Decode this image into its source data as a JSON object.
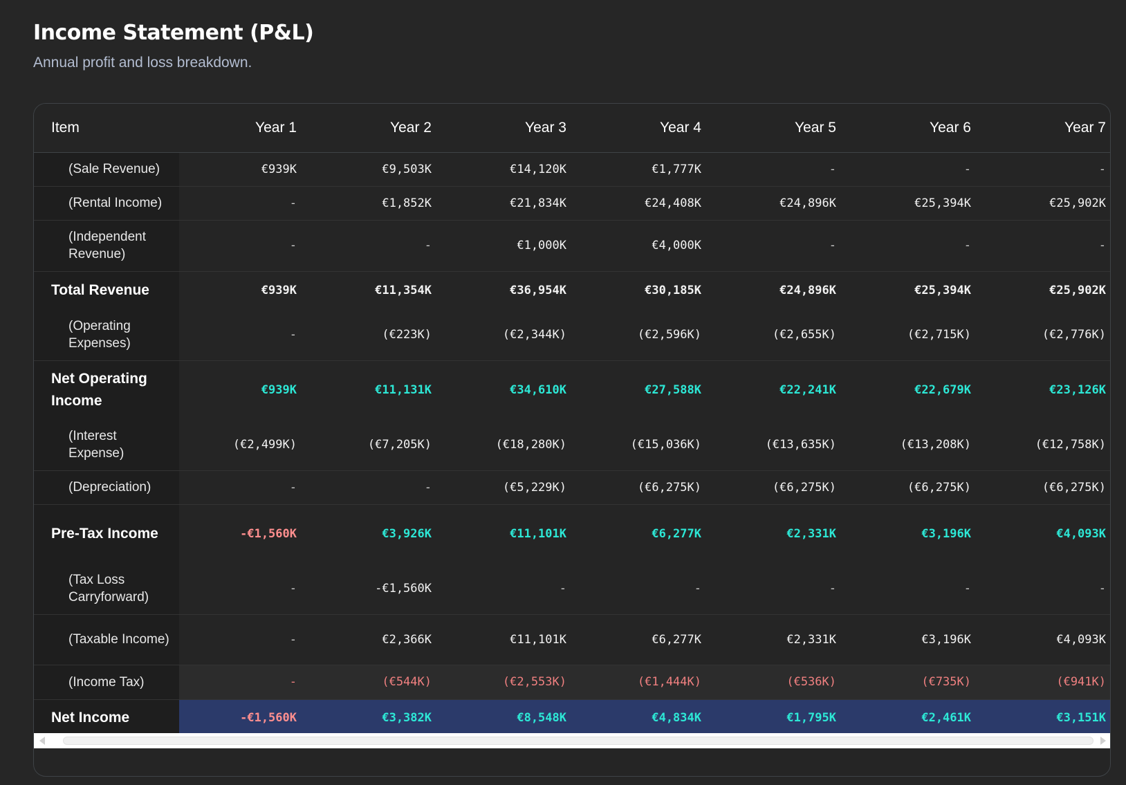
{
  "header": {
    "title": "Income Statement (P&L)",
    "subtitle": "Annual profit and loss breakdown."
  },
  "table": {
    "columns": [
      "Item",
      "Year 1",
      "Year 2",
      "Year 3",
      "Year 4",
      "Year 5",
      "Year 6",
      "Year 7"
    ],
    "rows": [
      {
        "label": "(Sale Revenue)",
        "kind": "sub",
        "values": [
          "€939K",
          "€9,503K",
          "€14,120K",
          "€1,777K",
          "-",
          "-",
          "-"
        ]
      },
      {
        "label": "(Rental Income)",
        "kind": "sub",
        "values": [
          "-",
          "€1,852K",
          "€21,834K",
          "€24,408K",
          "€24,896K",
          "€25,394K",
          "€25,902K"
        ]
      },
      {
        "label": "(Independent Revenue)",
        "kind": "sub",
        "values": [
          "-",
          "-",
          "€1,000K",
          "€4,000K",
          "-",
          "-",
          "-"
        ]
      },
      {
        "label": "Total Revenue",
        "kind": "total",
        "values": [
          "€939K",
          "€11,354K",
          "€36,954K",
          "€30,185K",
          "€24,896K",
          "€25,394K",
          "€25,902K"
        ]
      },
      {
        "label": "(Operating Expenses)",
        "kind": "sub",
        "values": [
          "-",
          "(€223K)",
          "(€2,344K)",
          "(€2,596K)",
          "(€2,655K)",
          "(€2,715K)",
          "(€2,776K)"
        ]
      },
      {
        "label": "Net Operating Income",
        "kind": "total-pos",
        "values": [
          "€939K",
          "€11,131K",
          "€34,610K",
          "€27,588K",
          "€22,241K",
          "€22,679K",
          "€23,126K"
        ]
      },
      {
        "label": "(Interest Expense)",
        "kind": "sub",
        "values": [
          "(€2,499K)",
          "(€7,205K)",
          "(€18,280K)",
          "(€15,036K)",
          "(€13,635K)",
          "(€13,208K)",
          "(€12,758K)"
        ]
      },
      {
        "label": "(Depreciation)",
        "kind": "sub",
        "values": [
          "-",
          "-",
          "(€5,229K)",
          "(€6,275K)",
          "(€6,275K)",
          "(€6,275K)",
          "(€6,275K)"
        ]
      },
      {
        "label": "Pre-Tax Income",
        "kind": "total-pos",
        "values": [
          "-€1,560K",
          "€3,926K",
          "€11,101K",
          "€6,277K",
          "€2,331K",
          "€3,196K",
          "€4,093K"
        ]
      },
      {
        "label": "(Tax Loss Carryforward)",
        "kind": "sub",
        "values": [
          "-",
          "-€1,560K",
          "-",
          "-",
          "-",
          "-",
          "-"
        ]
      },
      {
        "label": "(Taxable Income)",
        "kind": "sub",
        "values": [
          "-",
          "€2,366K",
          "€11,101K",
          "€6,277K",
          "€2,331K",
          "€3,196K",
          "€4,093K"
        ]
      },
      {
        "label": "(Income Tax)",
        "kind": "tax",
        "values": [
          "-",
          "(€544K)",
          "(€2,553K)",
          "(€1,444K)",
          "(€536K)",
          "(€735K)",
          "(€941K)"
        ]
      },
      {
        "label": "Net Income",
        "kind": "net",
        "values": [
          "-€1,560K",
          "€3,382K",
          "€8,548K",
          "€4,834K",
          "€1,795K",
          "€2,461K",
          "€3,151K"
        ]
      }
    ]
  },
  "colors": {
    "positive": "#2de8d6",
    "negative": "#ff8f8f",
    "net_row_bg": "#2b3a6a"
  }
}
